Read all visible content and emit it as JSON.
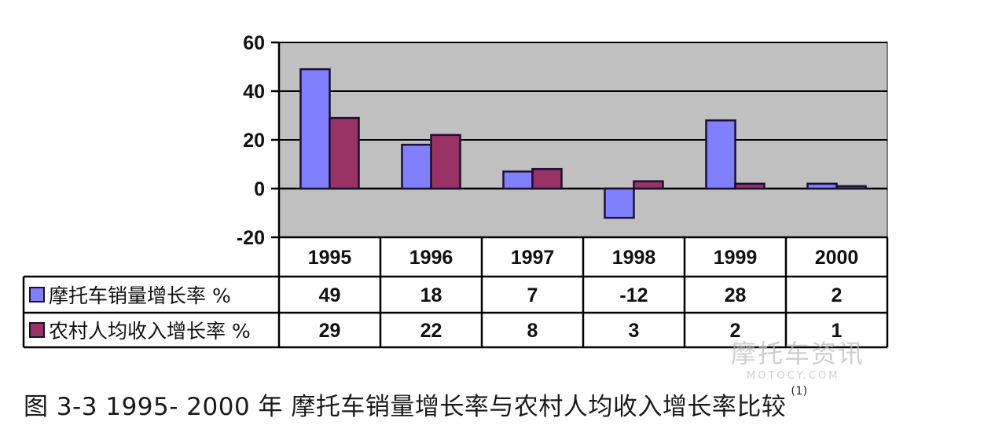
{
  "chart_data": {
    "type": "bar",
    "title": "图 3-3  1995- 2000 年  摩托车销量增长率与农村人均收入增长率比较",
    "title_footnote": "(1)",
    "categories": [
      "1995",
      "1996",
      "1997",
      "1998",
      "1999",
      "2000"
    ],
    "series": [
      {
        "name": "摩托车销量增长率 %",
        "color": "#8080ff",
        "values": [
          49,
          18,
          7,
          -12,
          28,
          2
        ]
      },
      {
        "name": "农村人均收入增长率 %",
        "color": "#993366",
        "values": [
          29,
          22,
          8,
          3,
          2,
          1
        ]
      }
    ],
    "xlabel": "",
    "ylabel": "",
    "ylim": [
      -20,
      60
    ],
    "yticks": [
      60,
      40,
      20,
      0,
      -20
    ],
    "grid": true,
    "legend_position": "data-table-left",
    "plot_background": "#c0c0c0",
    "has_data_table": true
  },
  "watermark": {
    "main": "摩托车资讯",
    "sub": "MOTOCY.COM"
  }
}
